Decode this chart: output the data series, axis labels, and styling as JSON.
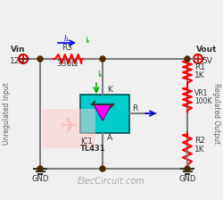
{
  "bg_color": "#f0f0f0",
  "title": "ElecCircuit.com",
  "vin_label": "Vin",
  "vin_val": "12V",
  "vout_label": "Vout",
  "vout_val": "5V",
  "r3_label": "R3",
  "r3_val": "330Ω",
  "r1_label": "R1",
  "r1_val": "1K",
  "r2_label": "R2",
  "r2_val": "1K",
  "vr1_label": "VR1",
  "vr1_val": "100K",
  "ic1_label": "IC1",
  "ic1_name": "TL431",
  "ir1_label": "I₁",
  "ik_label": "Iₖ",
  "k_label": "K",
  "a_label": "A",
  "r_label": "R",
  "gnd_label": "GND",
  "unregulated_label": "Unregulated Input",
  "regulated_label": "Regulated Output",
  "wire_color": "#808080",
  "resistor_color": "#ff0000",
  "node_color": "#4a2800",
  "tl431_bg": "#00cccc",
  "tl431_triangle": "#ff00ff",
  "arrow_blue": "#0000ff",
  "arrow_green": "#00aa00",
  "arrow_vr1": "#0000cc"
}
